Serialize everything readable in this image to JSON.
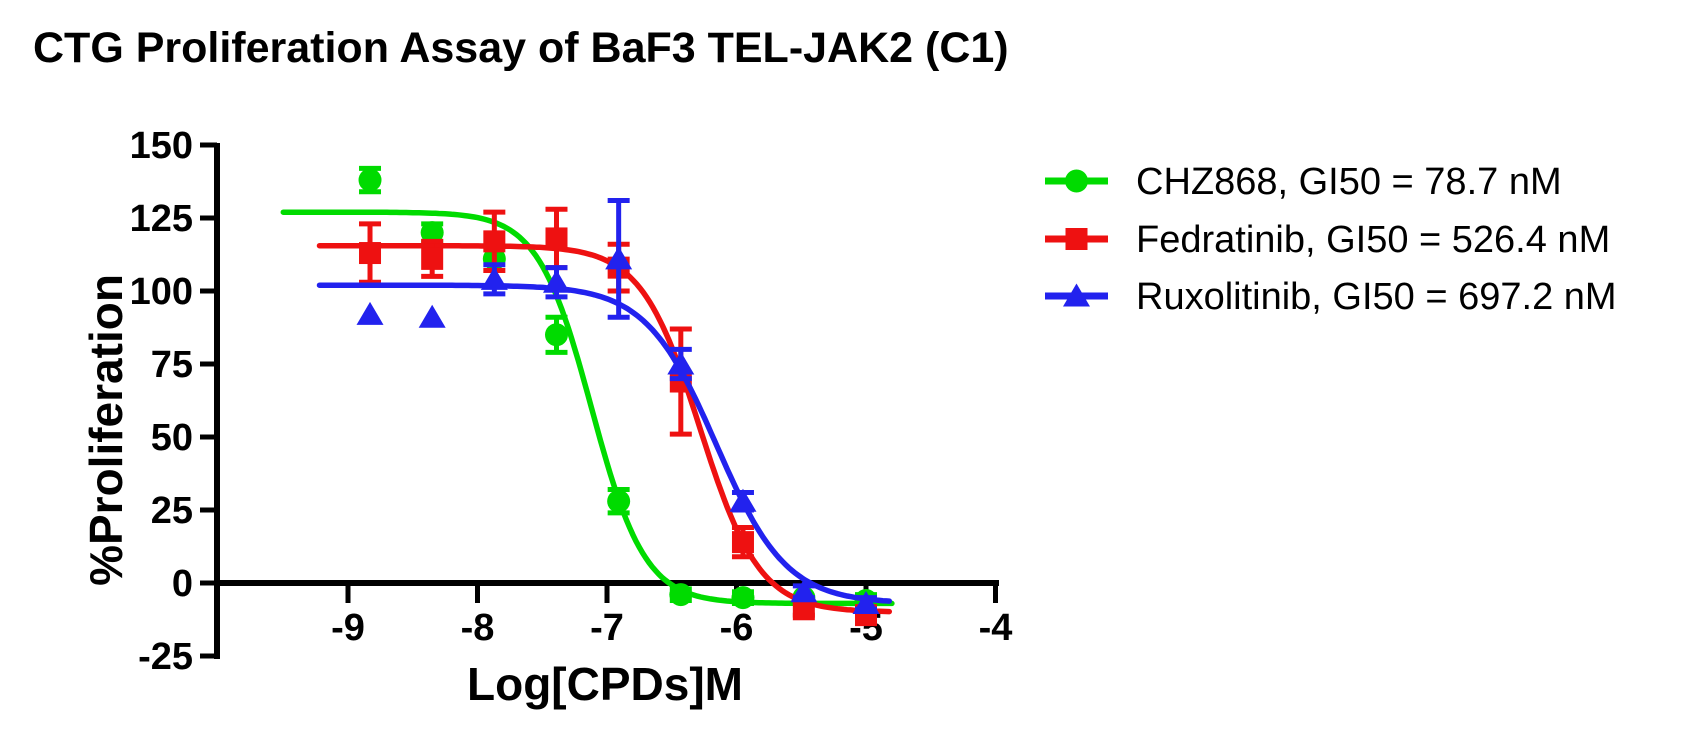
{
  "chart_data": {
    "type": "scatter",
    "title": "CTG Proliferation Assay of BaF3 TEL-JAK2 (C1)",
    "xlabel": "Log[CPDs]M",
    "ylabel": "%Proliferation",
    "xlim": [
      -9.7,
      -4
    ],
    "ylim": [
      -25,
      150
    ],
    "x_ticks": [
      -9,
      -8,
      -7,
      -6,
      -5,
      -4
    ],
    "y_ticks": [
      150,
      125,
      100,
      75,
      50,
      25,
      0,
      -25
    ],
    "grid": false,
    "legend_position": "right",
    "x": [
      -8.83,
      -8.35,
      -7.87,
      -7.39,
      -6.91,
      -6.43,
      -5.95,
      -5.48,
      -5.0
    ],
    "series": [
      {
        "name": "CHZ868",
        "legend_label": "CHZ868, GI50 = 78.7 nM",
        "gi50_nM": 78.7,
        "color": "#00DB00",
        "marker": "circle",
        "values": [
          138,
          120,
          111,
          85,
          28,
          -4,
          -5,
          -5,
          -6
        ],
        "errors": [
          4,
          3,
          0,
          6,
          4,
          2,
          2,
          0,
          2
        ],
        "fit": {
          "top": 127,
          "bottom": -7,
          "logIC50": -7.12,
          "hill": 2.1
        },
        "curve_log_range": [
          -9.5,
          -4.8
        ]
      },
      {
        "name": "Fedratinib",
        "legend_label": "Fedratinib, GI50 = 526.4 nM",
        "gi50_nM": 526.4,
        "color": "#EE1111",
        "marker": "square",
        "values": [
          113,
          111,
          117,
          118,
          108,
          69,
          14,
          -9,
          -11
        ],
        "errors": [
          10,
          6,
          10,
          10,
          8,
          18,
          5,
          2,
          2
        ],
        "fit": {
          "top": 115.5,
          "bottom": -10,
          "logIC50": -6.28,
          "hill": 1.9
        },
        "curve_log_range": [
          -9.22,
          -4.8
        ]
      },
      {
        "name": "Ruxolitinib",
        "legend_label": "Ruxolitinib, GI50 = 697.2 nM",
        "gi50_nM": 697.2,
        "color": "#2222EE",
        "marker": "triangle",
        "values": [
          92,
          91,
          104,
          103,
          111,
          75,
          28,
          -3,
          -7
        ],
        "errors": [
          0,
          0,
          5,
          5,
          20,
          5,
          3,
          2,
          2
        ],
        "fit": {
          "top": 102,
          "bottom": -7,
          "logIC50": -6.157,
          "hill": 1.6
        },
        "curve_log_range": [
          -9.22,
          -4.8
        ]
      }
    ]
  }
}
